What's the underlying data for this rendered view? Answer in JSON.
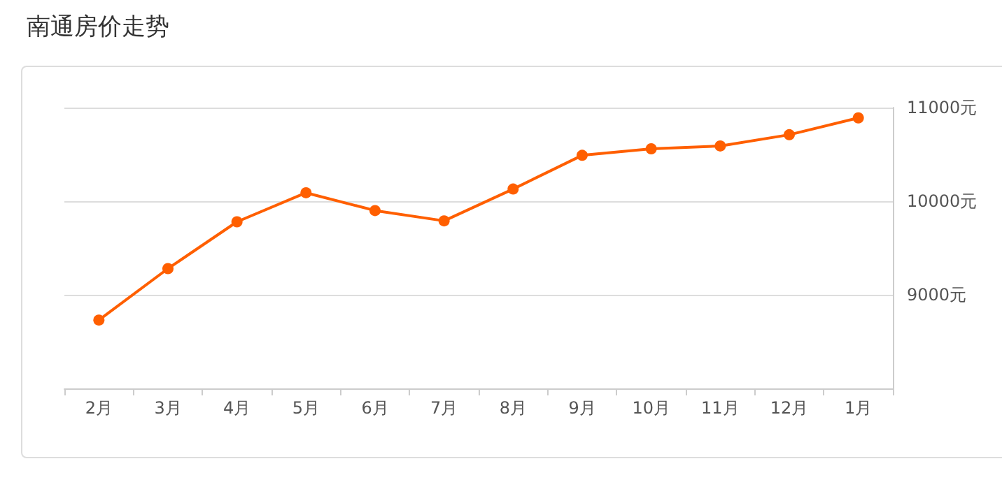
{
  "chart_data": {
    "type": "line",
    "title": "南通房价走势",
    "categories": [
      "2月",
      "3月",
      "4月",
      "5月",
      "6月",
      "7月",
      "8月",
      "9月",
      "10月",
      "11月",
      "12月",
      "1月"
    ],
    "series": [
      {
        "color": "#ff5f00",
        "values": [
          8730,
          9280,
          9780,
          10090,
          9900,
          9790,
          10130,
          10490,
          10560,
          10590,
          10710,
          10890
        ]
      }
    ],
    "ylim": [
      8000,
      11000
    ],
    "yticks": [
      {
        "value": 8000,
        "label": null
      },
      {
        "value": 9000,
        "label": "9000元"
      },
      {
        "value": 10000,
        "label": "10000元"
      },
      {
        "value": 11000,
        "label": "11000元"
      }
    ],
    "grid": "y",
    "marker": "circle",
    "line_style": "solid"
  }
}
